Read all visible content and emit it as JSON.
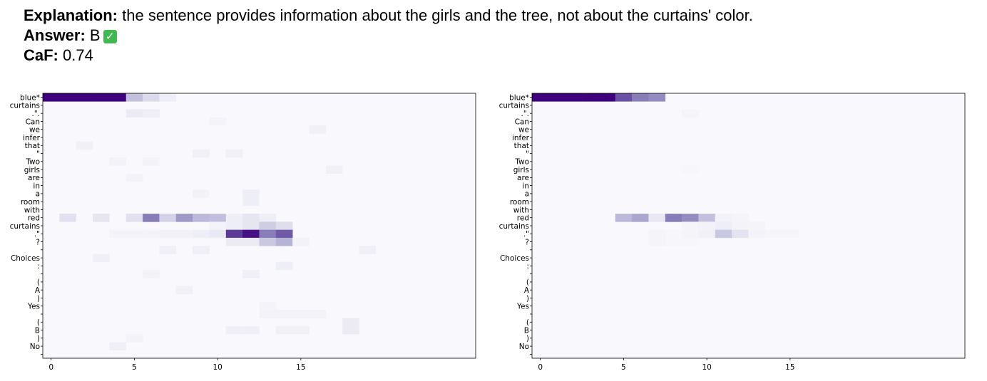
{
  "header": {
    "explanation_label": "Explanation:",
    "explanation_text": "the sentence provides information about the girls and the tree, not about the curtains' color.",
    "answer_label": "Answer:",
    "answer_value": "B",
    "answer_icon": "check-mark-icon",
    "answer_icon_glyph": "✓",
    "caf_label": "CaF:",
    "caf_value": "0.74"
  },
  "chart_data": [
    {
      "type": "heatmap",
      "title": "",
      "colormap": "Purples",
      "y_labels": [
        "blue*",
        "curtains",
        ".\".",
        "Can",
        "we",
        "infer",
        "that",
        "\"",
        "Two",
        "girls",
        "are",
        "in",
        "a",
        "room",
        "with",
        "red",
        "curtains",
        ".\"",
        "?",
        "",
        "Choices",
        ":",
        "",
        "(",
        "A",
        ")",
        "Yes",
        "",
        "(",
        "B",
        ")",
        "No",
        ""
      ],
      "x_ticks": [
        0,
        5,
        10,
        15
      ],
      "n_columns": 26,
      "cells": [
        [
          0,
          0,
          1.0
        ],
        [
          0,
          1,
          1.0
        ],
        [
          0,
          2,
          1.0
        ],
        [
          0,
          3,
          1.0
        ],
        [
          0,
          4,
          1.0
        ],
        [
          0,
          5,
          0.35
        ],
        [
          0,
          6,
          0.25
        ],
        [
          0,
          7,
          0.1
        ],
        [
          2,
          5,
          0.12
        ],
        [
          2,
          6,
          0.1
        ],
        [
          3,
          10,
          0.06
        ],
        [
          4,
          16,
          0.08
        ],
        [
          6,
          2,
          0.08
        ],
        [
          7,
          9,
          0.08
        ],
        [
          7,
          11,
          0.08
        ],
        [
          8,
          4,
          0.07
        ],
        [
          8,
          6,
          0.07
        ],
        [
          9,
          17,
          0.08
        ],
        [
          10,
          5,
          0.07
        ],
        [
          12,
          9,
          0.07
        ],
        [
          12,
          12,
          0.1
        ],
        [
          13,
          12,
          0.1
        ],
        [
          15,
          1,
          0.2
        ],
        [
          15,
          3,
          0.16
        ],
        [
          15,
          5,
          0.2
        ],
        [
          15,
          6,
          0.6
        ],
        [
          15,
          7,
          0.28
        ],
        [
          15,
          8,
          0.5
        ],
        [
          15,
          9,
          0.38
        ],
        [
          15,
          10,
          0.36
        ],
        [
          15,
          11,
          0.1
        ],
        [
          15,
          12,
          0.16
        ],
        [
          15,
          13,
          0.1
        ],
        [
          16,
          10,
          0.06
        ],
        [
          16,
          11,
          0.1
        ],
        [
          16,
          12,
          0.16
        ],
        [
          16,
          13,
          0.3
        ],
        [
          16,
          14,
          0.22
        ],
        [
          17,
          4,
          0.06
        ],
        [
          17,
          5,
          0.06
        ],
        [
          17,
          6,
          0.06
        ],
        [
          17,
          7,
          0.08
        ],
        [
          17,
          8,
          0.08
        ],
        [
          17,
          9,
          0.1
        ],
        [
          17,
          10,
          0.14
        ],
        [
          17,
          11,
          0.82
        ],
        [
          17,
          12,
          0.95
        ],
        [
          17,
          13,
          0.6
        ],
        [
          17,
          14,
          0.72
        ],
        [
          18,
          11,
          0.12
        ],
        [
          18,
          12,
          0.12
        ],
        [
          18,
          13,
          0.32
        ],
        [
          18,
          14,
          0.4
        ],
        [
          18,
          15,
          0.07
        ],
        [
          19,
          7,
          0.09
        ],
        [
          19,
          9,
          0.09
        ],
        [
          19,
          19,
          0.09
        ],
        [
          20,
          3,
          0.09
        ],
        [
          21,
          14,
          0.1
        ],
        [
          22,
          6,
          0.07
        ],
        [
          22,
          12,
          0.09
        ],
        [
          24,
          8,
          0.08
        ],
        [
          26,
          13,
          0.06
        ],
        [
          27,
          13,
          0.07
        ],
        [
          27,
          14,
          0.07
        ],
        [
          27,
          15,
          0.07
        ],
        [
          27,
          16,
          0.07
        ],
        [
          28,
          18,
          0.12
        ],
        [
          29,
          11,
          0.09
        ],
        [
          29,
          12,
          0.09
        ],
        [
          29,
          14,
          0.08
        ],
        [
          29,
          15,
          0.08
        ],
        [
          29,
          18,
          0.12
        ],
        [
          30,
          5,
          0.07
        ],
        [
          31,
          4,
          0.09
        ]
      ]
    },
    {
      "type": "heatmap",
      "title": "",
      "colormap": "Purples",
      "y_labels": [
        "blue*",
        "curtains",
        ".\".",
        "Can",
        "we",
        "infer",
        "that",
        "\"",
        "Two",
        "girls",
        "are",
        "in",
        "a",
        "room",
        "with",
        "red",
        "curtains",
        ".\"",
        "?",
        "",
        "Choices",
        ":",
        "",
        "(",
        "A",
        ")",
        "Yes",
        "",
        "(",
        "B",
        ")",
        "No",
        ""
      ],
      "x_ticks": [
        0,
        5,
        10,
        15
      ],
      "n_columns": 26,
      "cells": [
        [
          0,
          0,
          1.0
        ],
        [
          0,
          1,
          1.0
        ],
        [
          0,
          2,
          1.0
        ],
        [
          0,
          3,
          1.0
        ],
        [
          0,
          4,
          1.0
        ],
        [
          0,
          5,
          0.75
        ],
        [
          0,
          6,
          0.6
        ],
        [
          0,
          7,
          0.55
        ],
        [
          2,
          9,
          0.05
        ],
        [
          9,
          9,
          0.04
        ],
        [
          15,
          5,
          0.38
        ],
        [
          15,
          6,
          0.45
        ],
        [
          15,
          7,
          0.15
        ],
        [
          15,
          8,
          0.6
        ],
        [
          15,
          9,
          0.55
        ],
        [
          15,
          10,
          0.35
        ],
        [
          15,
          11,
          0.07
        ],
        [
          15,
          12,
          0.05
        ],
        [
          16,
          9,
          0.05
        ],
        [
          16,
          10,
          0.07
        ],
        [
          16,
          11,
          0.1
        ],
        [
          16,
          12,
          0.06
        ],
        [
          16,
          13,
          0.05
        ],
        [
          17,
          7,
          0.05
        ],
        [
          17,
          8,
          0.04
        ],
        [
          17,
          9,
          0.05
        ],
        [
          17,
          10,
          0.08
        ],
        [
          17,
          11,
          0.32
        ],
        [
          17,
          12,
          0.18
        ],
        [
          17,
          13,
          0.06
        ],
        [
          17,
          14,
          0.05
        ],
        [
          17,
          15,
          0.05
        ],
        [
          18,
          7,
          0.05
        ],
        [
          18,
          8,
          0.04
        ],
        [
          18,
          9,
          0.04
        ]
      ]
    }
  ]
}
